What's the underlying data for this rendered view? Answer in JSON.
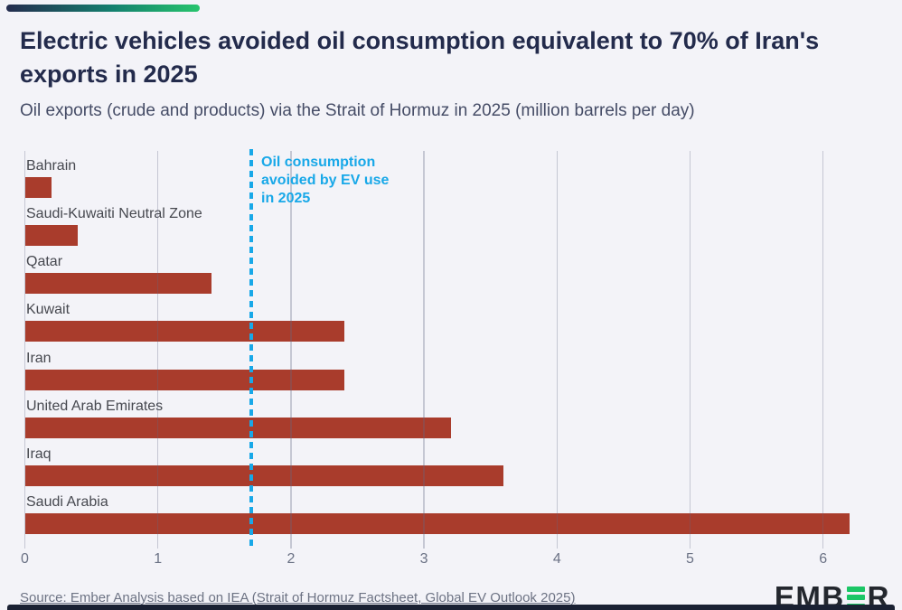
{
  "header": {
    "title": "Electric vehicles avoided oil consumption equivalent to 70% of Iran's\nexports in 2025",
    "subtitle": "Oil exports (crude and products) via the Strait of Hormuz in 2025 (million barrels per day)"
  },
  "chart_data": {
    "type": "bar",
    "orientation": "horizontal",
    "title": "Electric vehicles avoided oil consumption equivalent to 70% of Iran's exports in 2025",
    "subtitle": "Oil exports (crude and products) via the Strait of Hormuz in 2025 (million barrels per day)",
    "xlabel": "million barrels per day",
    "categories": [
      "Bahrain",
      "Saudi-Kuwaiti Neutral Zone",
      "Qatar",
      "Kuwait",
      "Iran",
      "United Arab Emirates",
      "Iraq",
      "Saudi Arabia"
    ],
    "values": [
      0.2,
      0.4,
      1.4,
      2.4,
      2.4,
      3.2,
      3.6,
      6.2
    ],
    "x_ticks": [
      0,
      1,
      2,
      3,
      4,
      5,
      6
    ],
    "xlim": [
      0,
      6.4
    ],
    "grid": "vertical",
    "bar_color": "#a93c2c",
    "grid_color": "rgba(98,106,134,0.32)",
    "reference_line": {
      "value": 1.7,
      "label": "Oil consumption\navoided by EV use\nin 2025",
      "color": "#18a8e8",
      "style": "dotted"
    }
  },
  "footer": {
    "source": "Source: Ember Analysis based on IEA (Strait of Hormuz Factsheet, Global EV Outlook 2025)",
    "logo": {
      "prefix": "EMB",
      "suffix": "R",
      "accent_color": "#1bc666",
      "text_color": "#23272e"
    }
  },
  "colors": {
    "background": "#f3f3f8",
    "title": "#232b4c",
    "subtitle": "#454c66",
    "bar": "#a93c2c",
    "annotation": "#18a8e8",
    "accent_gradient_start": "#242c4e",
    "accent_gradient_end": "#27c46d",
    "bottom_bar": "#1a2133"
  }
}
